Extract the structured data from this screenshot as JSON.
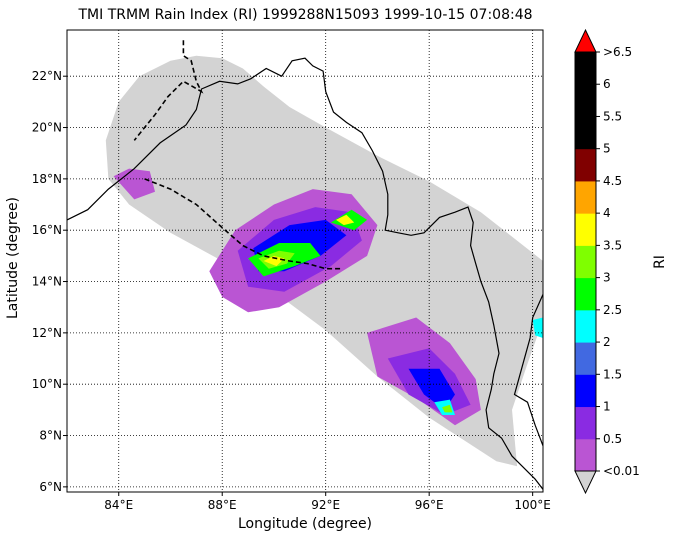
{
  "title": "TMI TRMM Rain Index (RI) 1999288N15093 1999-10-15 07:08:48",
  "xlabel": "Longitude (degree)",
  "ylabel": "Latitude (degree)",
  "colorbar_label": "RI",
  "colors": {
    "swath": "#d3d3d3",
    "coast": "#000000"
  },
  "chart_data": {
    "type": "heatmap",
    "title": "TMI TRMM Rain Index (RI) 1999288N15093 1999-10-15 07:08:48",
    "xlabel": "Longitude (degree)",
    "ylabel": "Latitude (degree)",
    "xlim": [
      82.0,
      100.4
    ],
    "ylim": [
      5.8,
      23.8
    ],
    "x_ticks": [
      84,
      88,
      92,
      96,
      100
    ],
    "x_tick_labels": [
      "84°E",
      "88°E",
      "92°E",
      "96°E",
      "100°E"
    ],
    "y_ticks": [
      6,
      8,
      10,
      12,
      14,
      16,
      18,
      20,
      22
    ],
    "y_tick_labels": [
      "6°N",
      "8°N",
      "10°N",
      "12°N",
      "14°N",
      "16°N",
      "18°N",
      "20°N",
      "22°N"
    ],
    "grid": true,
    "colorbar": {
      "label": "RI",
      "tick_labels": [
        "<0.01",
        "0.5",
        "1",
        "1.5",
        "2",
        "2.5",
        "3",
        "3.5",
        "4",
        "4.5",
        "5",
        "5.5",
        "6",
        ">6.5"
      ],
      "colors": [
        "#ba55d3",
        "#8a2be2",
        "#0000ff",
        "#4169e1",
        "#00ffff",
        "#00ff00",
        "#7fff00",
        "#ffff00",
        "#ffa500",
        "#800000",
        "#000000",
        "#000000",
        "#000000"
      ],
      "under_color": "#d3d3d3",
      "over_color": "#ff0000"
    },
    "swath_outline": [
      [
        83.5,
        19.5
      ],
      [
        84.0,
        21.0
      ],
      [
        84.8,
        22.0
      ],
      [
        86.0,
        22.6
      ],
      [
        87.0,
        22.8
      ],
      [
        88.0,
        22.7
      ],
      [
        88.8,
        22.3
      ],
      [
        89.6,
        21.6
      ],
      [
        90.6,
        20.8
      ],
      [
        92.0,
        20.0
      ],
      [
        94.0,
        18.9
      ],
      [
        96.0,
        17.9
      ],
      [
        98.0,
        16.7
      ],
      [
        100.4,
        14.8
      ],
      [
        100.4,
        12.5
      ],
      [
        99.8,
        10.8
      ],
      [
        99.2,
        9.0
      ],
      [
        99.4,
        6.8
      ],
      [
        98.6,
        7.0
      ],
      [
        96.0,
        8.7
      ],
      [
        94.0,
        10.3
      ],
      [
        92.0,
        12.1
      ],
      [
        90.0,
        13.6
      ],
      [
        88.0,
        14.8
      ],
      [
        86.0,
        15.9
      ],
      [
        84.4,
        17.0
      ],
      [
        83.6,
        18.0
      ]
    ],
    "coastline": [
      [
        82.0,
        16.4
      ],
      [
        82.8,
        16.8
      ],
      [
        83.6,
        17.6
      ],
      [
        84.6,
        18.4
      ],
      [
        85.6,
        19.4
      ],
      [
        86.6,
        20.1
      ],
      [
        87.0,
        20.7
      ],
      [
        87.2,
        21.5
      ],
      [
        87.9,
        21.8
      ],
      [
        88.6,
        21.7
      ],
      [
        89.1,
        21.9
      ],
      [
        89.7,
        22.3
      ],
      [
        90.3,
        22.0
      ],
      [
        90.7,
        22.6
      ],
      [
        91.2,
        22.7
      ],
      [
        91.5,
        22.4
      ],
      [
        91.9,
        22.2
      ],
      [
        92.0,
        21.4
      ],
      [
        92.3,
        20.6
      ],
      [
        92.8,
        20.2
      ],
      [
        93.4,
        19.8
      ],
      [
        93.8,
        19.1
      ],
      [
        94.2,
        18.3
      ],
      [
        94.4,
        17.4
      ],
      [
        94.4,
        16.6
      ],
      [
        94.3,
        16.0
      ],
      [
        94.8,
        15.9
      ],
      [
        95.3,
        15.8
      ],
      [
        95.8,
        15.9
      ],
      [
        96.4,
        16.5
      ],
      [
        97.0,
        16.7
      ],
      [
        97.5,
        16.9
      ],
      [
        97.7,
        16.3
      ],
      [
        97.6,
        15.4
      ],
      [
        97.8,
        14.7
      ],
      [
        98.0,
        14.0
      ],
      [
        98.3,
        13.2
      ],
      [
        98.5,
        12.3
      ],
      [
        98.7,
        11.2
      ],
      [
        98.5,
        10.4
      ],
      [
        98.4,
        9.8
      ],
      [
        98.2,
        9.0
      ],
      [
        98.3,
        8.3
      ],
      [
        98.8,
        7.9
      ],
      [
        99.2,
        7.2
      ],
      [
        99.6,
        6.8
      ],
      [
        100.1,
        6.3
      ],
      [
        100.4,
        5.9
      ]
    ],
    "coastline_gulf": [
      [
        100.4,
        13.5
      ],
      [
        100.0,
        12.6
      ],
      [
        99.9,
        11.8
      ],
      [
        99.6,
        10.7
      ],
      [
        99.3,
        9.6
      ],
      [
        99.8,
        9.3
      ],
      [
        100.1,
        8.4
      ],
      [
        100.4,
        7.6
      ]
    ],
    "coastline_east": [
      [
        100.4,
        14.5
      ],
      [
        100.6,
        13.8
      ]
    ],
    "border_india_bangladesh": [
      [
        86.5,
        23.4
      ],
      [
        86.5,
        22.8
      ],
      [
        86.8,
        22.6
      ],
      [
        87.0,
        21.8
      ],
      [
        87.2,
        21.4
      ],
      [
        86.5,
        21.8
      ],
      [
        85.9,
        21.2
      ],
      [
        85.4,
        20.5
      ],
      [
        85.0,
        20.0
      ],
      [
        84.6,
        19.5
      ]
    ],
    "track": [
      [
        85.0,
        18.0
      ],
      [
        86.0,
        17.6
      ],
      [
        87.0,
        17.0
      ],
      [
        88.0,
        16.1
      ],
      [
        88.8,
        15.4
      ],
      [
        89.6,
        15.0
      ],
      [
        90.6,
        14.8
      ],
      [
        91.3,
        14.7
      ],
      [
        92.0,
        14.5
      ],
      [
        92.6,
        14.5
      ]
    ],
    "rain_regions": [
      {
        "level": 0,
        "poly": [
          [
            83.8,
            18.1
          ],
          [
            84.6,
            17.2
          ],
          [
            85.4,
            17.5
          ],
          [
            85.2,
            18.3
          ],
          [
            84.4,
            18.4
          ]
        ]
      },
      {
        "level": 0,
        "poly": [
          [
            88.5,
            16.0
          ],
          [
            90.0,
            17.0
          ],
          [
            91.5,
            17.6
          ],
          [
            93.0,
            17.4
          ],
          [
            94.0,
            16.2
          ],
          [
            93.6,
            15.0
          ],
          [
            92.0,
            14.0
          ],
          [
            90.2,
            13.0
          ],
          [
            89.0,
            12.8
          ],
          [
            88.0,
            13.4
          ],
          [
            87.5,
            14.4
          ]
        ]
      },
      {
        "level": 0,
        "poly": [
          [
            93.6,
            12.0
          ],
          [
            95.5,
            12.6
          ],
          [
            96.8,
            11.6
          ],
          [
            97.8,
            10.2
          ],
          [
            98.0,
            9.0
          ],
          [
            97.0,
            8.4
          ],
          [
            95.6,
            9.4
          ],
          [
            94.0,
            10.3
          ]
        ]
      },
      {
        "level": 1,
        "poly": [
          [
            88.6,
            15.2
          ],
          [
            90.0,
            16.4
          ],
          [
            91.6,
            16.9
          ],
          [
            93.0,
            16.7
          ],
          [
            93.4,
            15.6
          ],
          [
            92.2,
            14.6
          ],
          [
            90.4,
            13.6
          ],
          [
            89.0,
            13.8
          ]
        ]
      },
      {
        "level": 1,
        "poly": [
          [
            94.4,
            11.0
          ],
          [
            96.0,
            11.4
          ],
          [
            97.0,
            10.4
          ],
          [
            97.6,
            9.2
          ],
          [
            96.6,
            8.8
          ],
          [
            95.2,
            9.6
          ]
        ]
      },
      {
        "level": 2,
        "poly": [
          [
            89.2,
            15.3
          ],
          [
            90.6,
            16.2
          ],
          [
            92.0,
            16.4
          ],
          [
            92.8,
            15.8
          ],
          [
            91.8,
            15.0
          ],
          [
            90.4,
            14.4
          ],
          [
            89.4,
            14.4
          ]
        ]
      },
      {
        "level": 2,
        "poly": [
          [
            95.2,
            10.6
          ],
          [
            96.4,
            10.6
          ],
          [
            97.0,
            9.6
          ],
          [
            96.6,
            9.0
          ],
          [
            95.8,
            9.6
          ]
        ]
      },
      {
        "level": 5,
        "poly": [
          [
            89.0,
            14.9
          ],
          [
            90.2,
            15.5
          ],
          [
            91.4,
            15.5
          ],
          [
            91.8,
            15.0
          ],
          [
            90.8,
            14.6
          ],
          [
            89.6,
            14.2
          ]
        ]
      },
      {
        "level": 6,
        "poly": [
          [
            89.4,
            14.9
          ],
          [
            90.2,
            15.2
          ],
          [
            90.8,
            15.1
          ],
          [
            90.5,
            14.7
          ],
          [
            89.8,
            14.5
          ]
        ]
      },
      {
        "level": 5,
        "poly": [
          [
            92.2,
            16.3
          ],
          [
            93.0,
            16.8
          ],
          [
            93.6,
            16.4
          ],
          [
            93.1,
            16.0
          ]
        ]
      },
      {
        "level": 7,
        "poly": [
          [
            89.6,
            14.8
          ],
          [
            90.0,
            15.0
          ],
          [
            90.4,
            14.9
          ],
          [
            90.1,
            14.6
          ]
        ]
      },
      {
        "level": 7,
        "poly": [
          [
            92.4,
            16.4
          ],
          [
            92.8,
            16.6
          ],
          [
            93.1,
            16.3
          ],
          [
            92.7,
            16.2
          ]
        ]
      },
      {
        "level": 4,
        "poly": [
          [
            96.2,
            9.3
          ],
          [
            96.8,
            9.4
          ],
          [
            97.0,
            8.8
          ],
          [
            96.5,
            8.8
          ]
        ]
      },
      {
        "level": 6,
        "poly": [
          [
            96.5,
            9.1
          ],
          [
            96.8,
            9.2
          ],
          [
            96.9,
            8.9
          ],
          [
            96.6,
            8.9
          ]
        ]
      },
      {
        "level": 4,
        "poly": [
          [
            100.0,
            12.5
          ],
          [
            100.4,
            12.6
          ],
          [
            100.4,
            11.8
          ],
          [
            100.1,
            11.9
          ]
        ]
      }
    ]
  }
}
